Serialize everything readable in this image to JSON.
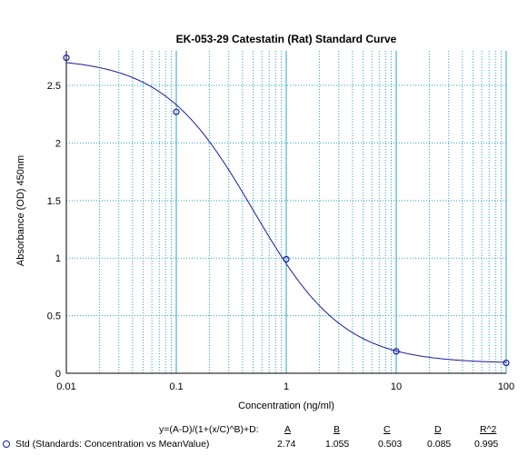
{
  "chart_data": {
    "type": "scatter",
    "title": "EK-053-29 Catestatin (Rat) Standard Curve",
    "xlabel": "Concentration (ng/ml)",
    "ylabel": "Absorbance (OD) 450nm",
    "xscale": "log",
    "xlim": [
      0.01,
      100
    ],
    "ylim": [
      0,
      2.8
    ],
    "x_ticks": [
      "0.01",
      "0.1",
      "1",
      "10",
      "100"
    ],
    "y_ticks": [
      "0",
      "0.5",
      "1",
      "1.5",
      "2",
      "2.5"
    ],
    "grid": true,
    "series": [
      {
        "name": "Std (Standards: Concentration vs MeanValue)",
        "x": [
          0.01,
          0.1,
          1,
          10,
          100
        ],
        "y": [
          2.74,
          2.27,
          0.99,
          0.19,
          0.09
        ]
      }
    ],
    "fit": {
      "equation": "y=(A-D)/(1+(x/C)^B)+D:",
      "headers": [
        "A",
        "B",
        "C",
        "D",
        "R^2"
      ],
      "values": [
        "2.74",
        "1.055",
        "0.503",
        "0.085",
        "0.995"
      ],
      "A": 2.74,
      "B": 1.055,
      "C": 0.503,
      "D": 0.085,
      "R2": 0.995
    },
    "colors": {
      "grid": "#29a3c4",
      "curve": "#1a1aa0",
      "axis": "#000000"
    }
  }
}
